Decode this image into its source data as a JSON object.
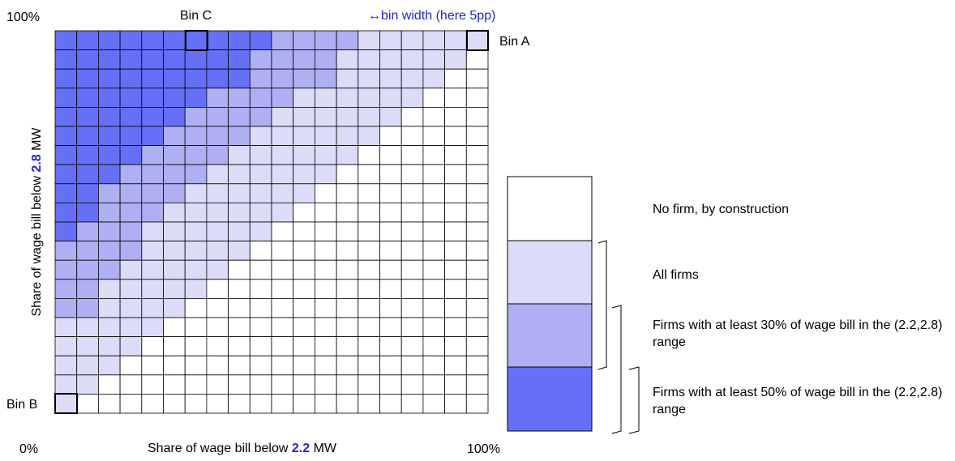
{
  "corners": {
    "top_left": "100%",
    "bottom_left": "0%",
    "bottom_right": "100%"
  },
  "bins": {
    "a": "Bin A",
    "b": "Bin B",
    "c": "Bin C"
  },
  "bin_width_note": "↔bin width (here 5pp)",
  "x_axis": {
    "prefix": "Share of wage bill below ",
    "value": "2.2",
    "suffix": " MW"
  },
  "y_axis": {
    "prefix": "Share of wage bill below ",
    "value": "2.8",
    "suffix": " MW"
  },
  "legend": [
    "No firm, by construction",
    "All firms",
    "Firms with at least 30% of wage bill in the (2.2,2.8) range",
    "Firms with at least 50% of wage bill in the (2.2,2.8) range"
  ]
}
